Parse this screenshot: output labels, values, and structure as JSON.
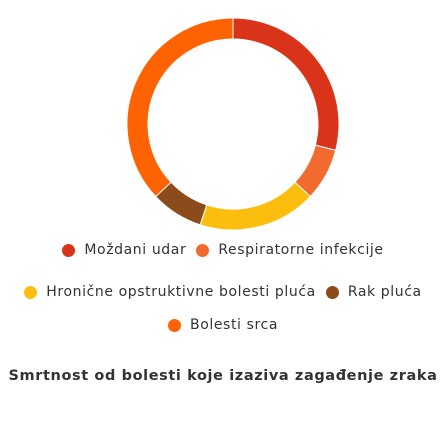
{
  "chart_data": {
    "type": "pie",
    "donut": true,
    "categories": [
      "Moždani udar",
      "Respiratorne infekcije",
      "Hronične opstruktivne bolesti pluća",
      "Rak pluća",
      "Bolesti srca"
    ],
    "values": [
      29,
      8,
      18,
      8,
      37
    ],
    "colors": [
      "#d9341a",
      "#f26a2e",
      "#fbbe0f",
      "#8b4b1b",
      "#ff6200"
    ],
    "title": "",
    "caption": "Smrtnost od bolesti koje izaziva zagađenje zraka",
    "legend_position": "bottom"
  }
}
